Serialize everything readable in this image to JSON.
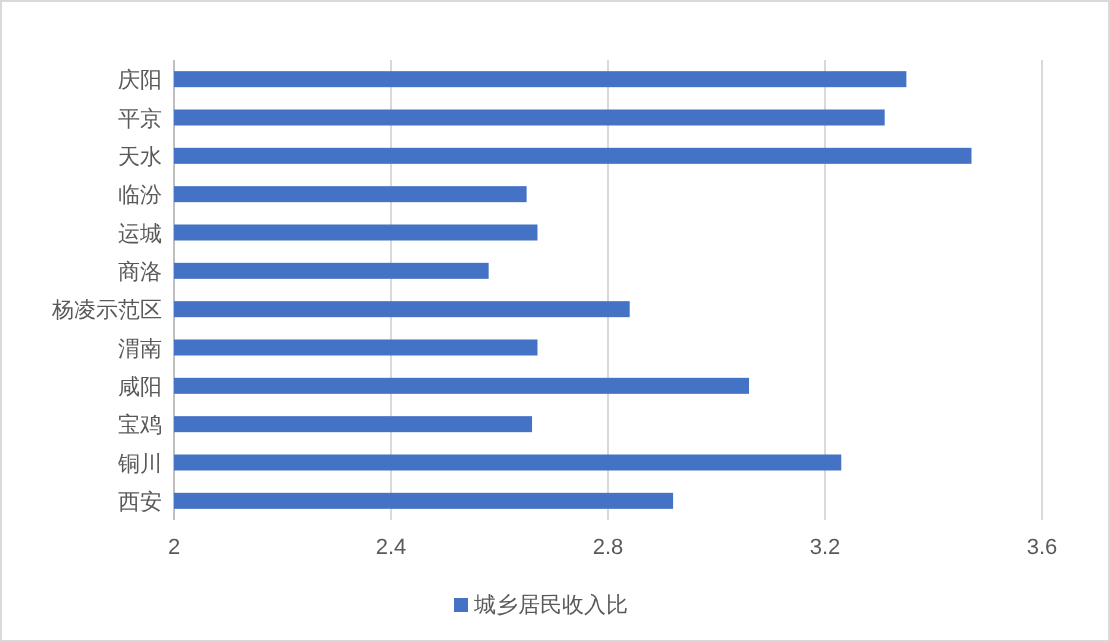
{
  "chart_data": {
    "type": "bar",
    "orientation": "horizontal",
    "categories": [
      "庆阳",
      "平京",
      "天水",
      "临汾",
      "运城",
      "商洛",
      "杨凌示范区",
      "渭南",
      "咸阳",
      "宝鸡",
      "铜川",
      "西安"
    ],
    "series": [
      {
        "name": "城乡居民收入比",
        "color": "#4472c4",
        "values": [
          3.35,
          3.31,
          3.47,
          2.65,
          2.67,
          2.58,
          2.84,
          2.67,
          3.06,
          2.66,
          3.23,
          2.92
        ]
      }
    ],
    "xlim": [
      2,
      3.6
    ],
    "xticks": [
      2,
      2.4,
      2.8,
      3.2,
      3.6
    ],
    "grid": "x",
    "legend": "bottom"
  }
}
